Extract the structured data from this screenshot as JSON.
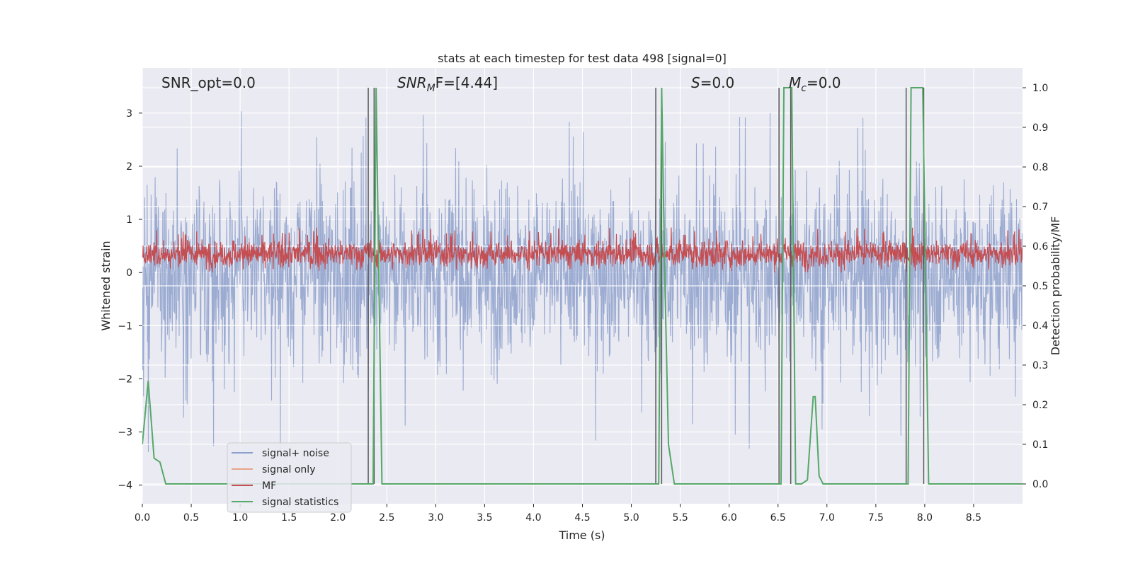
{
  "chart_data": {
    "type": "line",
    "title": "stats at each timestep for test data 498 [signal=0]",
    "xlabel": "Time (s)",
    "ylabel": "Whitened strain",
    "y2label": "Detection probability/MF",
    "xlim": [
      0,
      9.0
    ],
    "ylim": [
      -4.35,
      3.85
    ],
    "y2lim": [
      -0.05,
      1.05
    ],
    "xticks": [
      "0.0",
      "0.5",
      "1.0",
      "1.5",
      "2.0",
      "2.5",
      "3.0",
      "3.5",
      "4.0",
      "4.5",
      "5.0",
      "5.5",
      "6.0",
      "6.5",
      "7.0",
      "7.5",
      "8.0",
      "8.5"
    ],
    "yticks": [
      "3",
      "2",
      "1",
      "0",
      "−1",
      "−2",
      "−3",
      "−4"
    ],
    "y2ticks": [
      "1.0",
      "0.9",
      "0.8",
      "0.7",
      "0.6",
      "0.5",
      "0.4",
      "0.3",
      "0.2",
      "0.1",
      "0.0"
    ],
    "grid": true,
    "legend_placement": "lower-left",
    "annotations": {
      "snr_opt": "SNR_opt=0.0",
      "snr_mf_sym": "SNR",
      "snr_mf_sub": "M",
      "snr_mf_rest": "F=[4.44]",
      "s_sym": "S",
      "s_rest": "=0.0",
      "mc_sym": "M",
      "mc_sub": "c",
      "mc_rest": "=0.0"
    },
    "series": [
      {
        "name": "signal+ noise",
        "color": "#8da0cb"
      },
      {
        "name": "signal only",
        "color": "#e8a58a"
      },
      {
        "name": "MF",
        "color": "#c44e52"
      },
      {
        "name": "signal statistics",
        "color": "#55a868"
      }
    ],
    "noise_envelope": {
      "typical_min": -1.9,
      "typical_max": 2.0,
      "extreme_min": -3.4,
      "extreme_max": 3.05
    },
    "mf_band": {
      "min": 0.0,
      "max": 0.85,
      "axis": "left"
    },
    "signal_statistics": {
      "x": [
        0.0,
        0.06,
        0.12,
        0.18,
        0.24,
        0.3,
        2.3,
        2.33,
        2.36,
        2.39,
        2.42,
        2.45,
        2.48,
        5.24,
        5.28,
        5.31,
        5.34,
        5.38,
        5.44,
        6.5,
        6.53,
        6.56,
        6.6,
        6.64,
        6.68,
        6.74,
        6.8,
        6.86,
        6.88,
        6.92,
        6.96,
        7.8,
        7.83,
        7.86,
        7.92,
        7.98,
        8.04,
        8.08,
        9.0
      ],
      "y": [
        0.1,
        0.26,
        0.065,
        0.055,
        0.0,
        0.0,
        0.0,
        0.0,
        0.0,
        1.0,
        0.5,
        0.0,
        0.0,
        0.0,
        0.0,
        1.0,
        0.55,
        0.1,
        0.0,
        0.0,
        0.0,
        1.0,
        1.0,
        1.0,
        0.0,
        0.0,
        0.01,
        0.22,
        0.22,
        0.02,
        0.0,
        0.0,
        0.0,
        1.0,
        1.0,
        1.0,
        0.0,
        0.0,
        0.0
      ]
    },
    "vertical_markers": [
      2.31,
      2.37,
      5.25,
      5.31,
      6.51,
      6.63,
      7.81,
      7.99
    ],
    "marker_y_range": [
      0.0,
      1.0
    ]
  }
}
